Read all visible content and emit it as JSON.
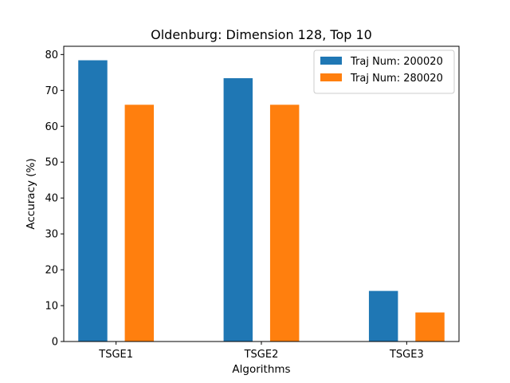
{
  "chart_data": {
    "type": "bar",
    "title": "Oldenburg: Dimension 128, Top 10",
    "xlabel": "Algorithms",
    "ylabel": "Accuracy (%)",
    "categories": [
      "TSGE1",
      "TSGE2",
      "TSGE3"
    ],
    "series": [
      {
        "name": "Traj Num: 200020",
        "color": "#1f77b4",
        "values": [
          78.4,
          73.4,
          14.1
        ]
      },
      {
        "name": "Traj Num: 280020",
        "color": "#ff7f0e",
        "values": [
          66.0,
          66.0,
          8.1
        ]
      }
    ],
    "ylim": [
      0,
      82.3
    ],
    "yticks": [
      0,
      10,
      20,
      30,
      40,
      50,
      60,
      70,
      80
    ],
    "grid": false,
    "legend_position": "top-right"
  }
}
